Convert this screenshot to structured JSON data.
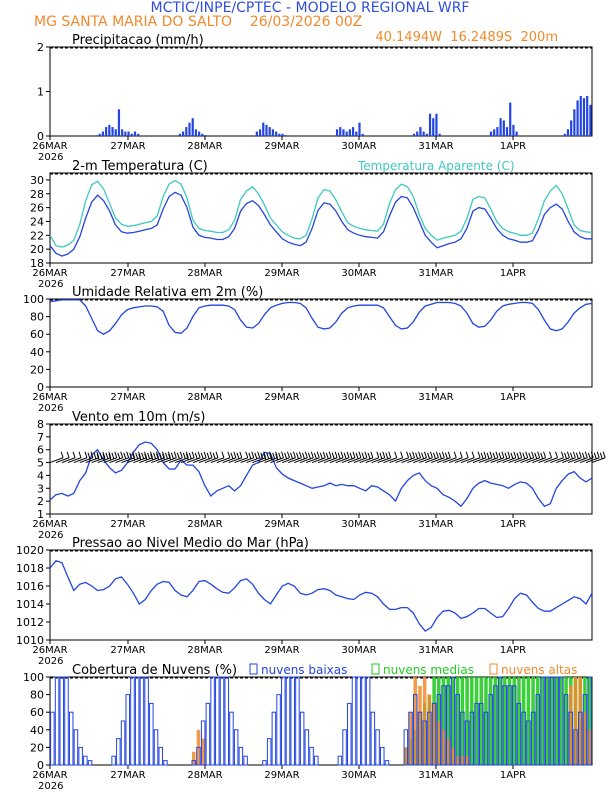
{
  "header": {
    "title": "MCTIC/INPE/CPTEC - MODELO REGIONAL WRF",
    "location_line": "MG SANTA MARIA DO SALTO    26/03/2026 00Z",
    "coords": "40.1494W  16.2489S  200m"
  },
  "colors": {
    "title": "#2e4fd8",
    "orange": "#f08a2c",
    "cyan": "#3fc8c0",
    "blue": "#2345e0",
    "green": "#22cc22",
    "purple": "#8a4fd0",
    "black": "#000000"
  },
  "x_axis": {
    "tick_labels": [
      "26MAR",
      "27MAR",
      "28MAR",
      "29MAR",
      "30MAR",
      "31MAR",
      "1APR"
    ],
    "year_label": "2026"
  },
  "chart_data": [
    {
      "id": "precip",
      "type": "bar",
      "title": "Precipitacao (mm/h)",
      "ylim": [
        0,
        2
      ],
      "yticks": [
        0,
        1,
        2
      ],
      "series": [
        {
          "name": "Precipitacao",
          "color": "#2345e0",
          "values": [
            0,
            0,
            0,
            0,
            0,
            0,
            0,
            0,
            0,
            0,
            0,
            0,
            0,
            0,
            0.02,
            0.05,
            0.1,
            0.2,
            0.25,
            0.2,
            0.15,
            0.6,
            0.15,
            0.1,
            0.1,
            0.05,
            0.1,
            0.05,
            0,
            0,
            0,
            0,
            0,
            0,
            0,
            0,
            0,
            0,
            0,
            0,
            0.05,
            0.1,
            0.2,
            0.3,
            0.4,
            0.15,
            0.1,
            0.05,
            0.02,
            0,
            0,
            0,
            0,
            0,
            0,
            0,
            0,
            0,
            0,
            0,
            0,
            0,
            0,
            0,
            0.1,
            0.15,
            0.3,
            0.25,
            0.2,
            0.15,
            0.1,
            0.05,
            0.05,
            0.02,
            0,
            0,
            0,
            0,
            0,
            0,
            0,
            0,
            0,
            0,
            0,
            0,
            0,
            0,
            0,
            0.15,
            0.2,
            0.15,
            0.1,
            0.15,
            0.2,
            0.1,
            0.3,
            0.05,
            0,
            0,
            0,
            0,
            0,
            0,
            0,
            0,
            0,
            0,
            0,
            0,
            0,
            0,
            0,
            0.05,
            0.1,
            0.2,
            0.1,
            0.05,
            0.5,
            0.4,
            0.5,
            0.05,
            0,
            0,
            0,
            0,
            0,
            0,
            0,
            0,
            0,
            0,
            0,
            0,
            0,
            0,
            0,
            0.1,
            0.15,
            0.2,
            0.4,
            0.35,
            0.2,
            0.75,
            0.25,
            0.1,
            0,
            0,
            0,
            0,
            0,
            0,
            0,
            0,
            0,
            0,
            0,
            0,
            0,
            0,
            0.05,
            0.15,
            0.35,
            0.6,
            0.8,
            0.9,
            0.85,
            0.9,
            0.7
          ]
        }
      ]
    },
    {
      "id": "temp",
      "type": "line",
      "title": "2-m Temperatura (C)",
      "legend": "Temperatura Aparente (C)",
      "ylim": [
        18,
        31
      ],
      "yticks": [
        18,
        20,
        22,
        24,
        26,
        28,
        30
      ],
      "series": [
        {
          "name": "Temperatura",
          "color": "#2345e0",
          "values": [
            20.5,
            19.4,
            19.0,
            19.3,
            20.0,
            21.8,
            24.5,
            26.8,
            27.8,
            27.0,
            25.5,
            23.5,
            22.5,
            22.3,
            22.4,
            22.6,
            22.8,
            23.0,
            23.5,
            25.8,
            27.6,
            28.2,
            27.8,
            26.0,
            23.2,
            22.0,
            21.7,
            21.6,
            21.4,
            21.4,
            21.8,
            23.0,
            25.5,
            26.6,
            27.0,
            26.3,
            25.0,
            23.5,
            22.5,
            21.5,
            21.0,
            20.7,
            20.5,
            21.0,
            23.0,
            25.6,
            26.7,
            26.5,
            25.5,
            24.0,
            22.8,
            22.3,
            22.0,
            21.8,
            21.7,
            21.6,
            22.5,
            24.8,
            26.8,
            27.6,
            27.4,
            26.0,
            24.0,
            22.0,
            21.0,
            20.2,
            20.5,
            20.8,
            21.0,
            21.5,
            23.0,
            25.5,
            26.0,
            25.8,
            24.5,
            23.0,
            22.0,
            21.5,
            21.3,
            21.0,
            21.0,
            21.2,
            22.8,
            25.0,
            26.0,
            26.5,
            25.8,
            24.0,
            22.5,
            21.8,
            21.5,
            21.5
          ]
        },
        {
          "name": "Temperatura Aparente",
          "color": "#3fc8c0",
          "values": [
            22.0,
            20.5,
            20.3,
            20.6,
            21.3,
            23.6,
            27.0,
            29.3,
            29.8,
            28.7,
            26.6,
            24.5,
            23.6,
            23.3,
            23.4,
            23.6,
            23.8,
            24.0,
            24.8,
            27.6,
            29.4,
            29.9,
            29.4,
            27.4,
            24.2,
            23.0,
            22.7,
            22.6,
            22.4,
            22.4,
            22.8,
            24.2,
            27.2,
            28.4,
            29.0,
            28.0,
            26.4,
            24.5,
            23.5,
            22.5,
            22.0,
            21.6,
            21.5,
            22.0,
            24.4,
            27.4,
            28.6,
            28.4,
            27.1,
            25.4,
            23.8,
            23.3,
            23.0,
            22.8,
            22.7,
            22.6,
            23.6,
            26.6,
            28.6,
            29.4,
            29.0,
            27.6,
            25.0,
            23.0,
            22.0,
            21.3,
            21.6,
            21.8,
            22.0,
            22.6,
            24.4,
            27.2,
            27.6,
            27.4,
            25.8,
            24.0,
            23.0,
            22.5,
            22.3,
            22.0,
            22.0,
            22.3,
            24.4,
            27.0,
            28.4,
            29.2,
            28.0,
            25.8,
            23.5,
            22.7,
            22.5,
            22.4
          ]
        }
      ]
    },
    {
      "id": "rh",
      "type": "line",
      "title": "Umidade Relativa em 2m (%)",
      "ylim": [
        0,
        100
      ],
      "yticks": [
        0,
        20,
        40,
        60,
        80,
        100
      ],
      "series": [
        {
          "name": "Umidade Relativa",
          "color": "#2345e0",
          "values": [
            97,
            98,
            99,
            99,
            99,
            99,
            92,
            78,
            64,
            60,
            64,
            72,
            82,
            88,
            90,
            91,
            92,
            92,
            91,
            86,
            70,
            62,
            61,
            67,
            80,
            90,
            92,
            93,
            93,
            93,
            92,
            88,
            76,
            68,
            67,
            72,
            82,
            90,
            93,
            95,
            96,
            96,
            95,
            90,
            78,
            68,
            66,
            67,
            74,
            84,
            90,
            92,
            93,
            93,
            93,
            93,
            90,
            80,
            70,
            66,
            67,
            74,
            85,
            92,
            94,
            96,
            96,
            96,
            95,
            92,
            84,
            72,
            68,
            69,
            76,
            86,
            92,
            94,
            95,
            96,
            96,
            95,
            88,
            76,
            66,
            64,
            66,
            74,
            84,
            90,
            94,
            95
          ]
        }
      ]
    },
    {
      "id": "wind",
      "type": "line",
      "title": "Vento em 10m (m/s)",
      "ylim": [
        1,
        8
      ],
      "yticks": [
        1,
        2,
        3,
        4,
        5,
        6,
        7,
        8
      ],
      "series": [
        {
          "name": "Vento",
          "color": "#2345e0",
          "values": [
            2.1,
            2.5,
            2.6,
            2.4,
            2.6,
            3.6,
            4.2,
            5.6,
            6.0,
            5.2,
            4.6,
            4.2,
            4.4,
            5.0,
            5.8,
            6.4,
            6.6,
            6.5,
            6.0,
            5.0,
            4.5,
            4.5,
            5.2,
            4.8,
            4.8,
            4.3,
            3.2,
            2.4,
            2.8,
            3.0,
            3.2,
            2.8,
            3.2,
            4.0,
            4.8,
            5.0,
            5.8,
            5.7,
            4.6,
            4.1,
            3.8,
            3.6,
            3.4,
            3.2,
            3.0,
            3.1,
            3.2,
            3.4,
            3.2,
            3.3,
            3.2,
            3.2,
            3.0,
            2.8,
            3.2,
            3.1,
            2.8,
            2.5,
            2.0,
            3.0,
            3.6,
            4.0,
            4.2,
            3.6,
            3.2,
            3.0,
            2.5,
            2.3,
            2.0,
            1.6,
            2.2,
            3.0,
            3.4,
            3.6,
            3.4,
            3.3,
            3.2,
            3.0,
            3.3,
            3.5,
            3.4,
            3.0,
            2.2,
            1.6,
            1.8,
            3.0,
            3.6,
            4.1,
            4.3,
            3.8,
            3.5,
            3.8
          ]
        }
      ],
      "barb_level": 5
    },
    {
      "id": "pressure",
      "type": "line",
      "title": "Pressao ao Nivel Medio do Mar (hPa)",
      "ylim": [
        1010,
        1020
      ],
      "yticks": [
        1010,
        1012,
        1014,
        1016,
        1018,
        1020
      ],
      "series": [
        {
          "name": "Pressao",
          "color": "#2345e0",
          "values": [
            1018.0,
            1018.8,
            1018.6,
            1017.0,
            1015.5,
            1016.2,
            1016.4,
            1016.0,
            1015.5,
            1015.6,
            1016.0,
            1016.8,
            1017.0,
            1016.2,
            1015.2,
            1014.0,
            1014.5,
            1015.5,
            1016.2,
            1016.5,
            1016.4,
            1015.5,
            1015.0,
            1014.8,
            1015.5,
            1016.5,
            1016.6,
            1016.2,
            1015.7,
            1015.3,
            1015.2,
            1015.8,
            1016.6,
            1016.8,
            1016.2,
            1015.2,
            1014.5,
            1014.0,
            1015.0,
            1016.0,
            1016.3,
            1016.0,
            1015.2,
            1015.0,
            1015.2,
            1015.6,
            1015.7,
            1015.5,
            1015.0,
            1014.8,
            1014.6,
            1014.5,
            1015.0,
            1015.3,
            1015.2,
            1014.8,
            1014.0,
            1013.4,
            1013.4,
            1013.6,
            1013.6,
            1013.0,
            1011.8,
            1011.0,
            1011.4,
            1012.5,
            1013.2,
            1013.3,
            1013.0,
            1012.4,
            1012.6,
            1013.0,
            1013.5,
            1013.5,
            1013.0,
            1012.5,
            1012.6,
            1013.5,
            1014.6,
            1015.2,
            1015.0,
            1014.2,
            1013.5,
            1013.2,
            1013.2,
            1013.6,
            1014.0,
            1014.4,
            1014.8,
            1014.6,
            1014.0,
            1015.2
          ]
        }
      ]
    },
    {
      "id": "clouds",
      "type": "bar",
      "title": "Cobertura de Nuvens (%)",
      "legend": [
        "nuvens baixas",
        "nuvens medias",
        "nuvens altas"
      ],
      "ylim": [
        0,
        100
      ],
      "yticks": [
        0,
        20,
        40,
        60,
        80,
        100
      ],
      "series": [
        {
          "name": "nuvens baixas",
          "color": "#2345e0",
          "values": [
            60,
            100,
            100,
            100,
            60,
            40,
            20,
            10,
            5,
            0,
            0,
            0,
            0,
            10,
            30,
            50,
            80,
            100,
            100,
            100,
            100,
            70,
            40,
            20,
            5,
            0,
            0,
            0,
            0,
            0,
            5,
            20,
            50,
            70,
            100,
            100,
            100,
            100,
            60,
            40,
            20,
            10,
            0,
            0,
            0,
            5,
            30,
            60,
            80,
            100,
            100,
            100,
            100,
            60,
            40,
            20,
            10,
            0,
            0,
            0,
            0,
            10,
            40,
            70,
            100,
            100,
            100,
            100,
            60,
            40,
            20,
            5,
            0,
            0,
            0,
            40,
            60,
            80,
            60,
            50,
            60,
            70,
            80,
            90,
            90,
            100,
            80,
            60,
            50,
            60,
            70,
            70,
            60,
            80,
            90,
            100,
            90,
            90,
            90,
            70,
            60,
            50,
            60,
            80,
            100,
            100,
            100,
            100,
            100,
            80,
            60,
            40,
            60,
            80,
            100
          ]
        },
        {
          "name": "nuvens medias",
          "color": "#22cc22",
          "values": [
            0,
            0,
            0,
            0,
            0,
            0,
            0,
            0,
            0,
            0,
            0,
            0,
            0,
            0,
            0,
            0,
            0,
            0,
            0,
            0,
            0,
            0,
            0,
            0,
            0,
            0,
            0,
            0,
            0,
            0,
            0,
            0,
            0,
            0,
            0,
            0,
            0,
            0,
            0,
            0,
            0,
            0,
            0,
            0,
            0,
            0,
            0,
            0,
            0,
            0,
            0,
            0,
            0,
            0,
            0,
            0,
            0,
            0,
            0,
            0,
            0,
            0,
            0,
            0,
            0,
            0,
            0,
            0,
            0,
            0,
            0,
            0,
            0,
            0,
            0,
            20,
            30,
            40,
            60,
            70,
            80,
            100,
            100,
            100,
            100,
            100,
            100,
            100,
            100,
            100,
            100,
            100,
            100,
            100,
            100,
            100,
            100,
            100,
            100,
            100,
            100,
            100,
            100,
            100,
            100,
            100,
            100,
            100,
            100,
            100,
            100,
            100,
            100,
            100,
            100
          ]
        },
        {
          "name": "nuvens altas",
          "color": "#f08a2c",
          "values": [
            0,
            0,
            0,
            0,
            0,
            0,
            0,
            0,
            0,
            0,
            0,
            0,
            0,
            0,
            0,
            0,
            0,
            0,
            0,
            0,
            0,
            0,
            0,
            0,
            0,
            0,
            0,
            0,
            0,
            0,
            15,
            40,
            30,
            0,
            0,
            0,
            0,
            0,
            0,
            0,
            0,
            0,
            0,
            0,
            0,
            0,
            0,
            0,
            0,
            0,
            0,
            0,
            0,
            0,
            0,
            0,
            0,
            0,
            0,
            0,
            0,
            0,
            0,
            0,
            0,
            0,
            0,
            0,
            0,
            0,
            0,
            0,
            0,
            0,
            0,
            20,
            60,
            100,
            90,
            100,
            80,
            70,
            50,
            40,
            30,
            20,
            10,
            10,
            10,
            0,
            0,
            0,
            0,
            0,
            0,
            0,
            0,
            0,
            0,
            0,
            0,
            0,
            0,
            0,
            0,
            0,
            0,
            0,
            0,
            0,
            90,
            100,
            100,
            60,
            40
          ]
        }
      ]
    }
  ]
}
